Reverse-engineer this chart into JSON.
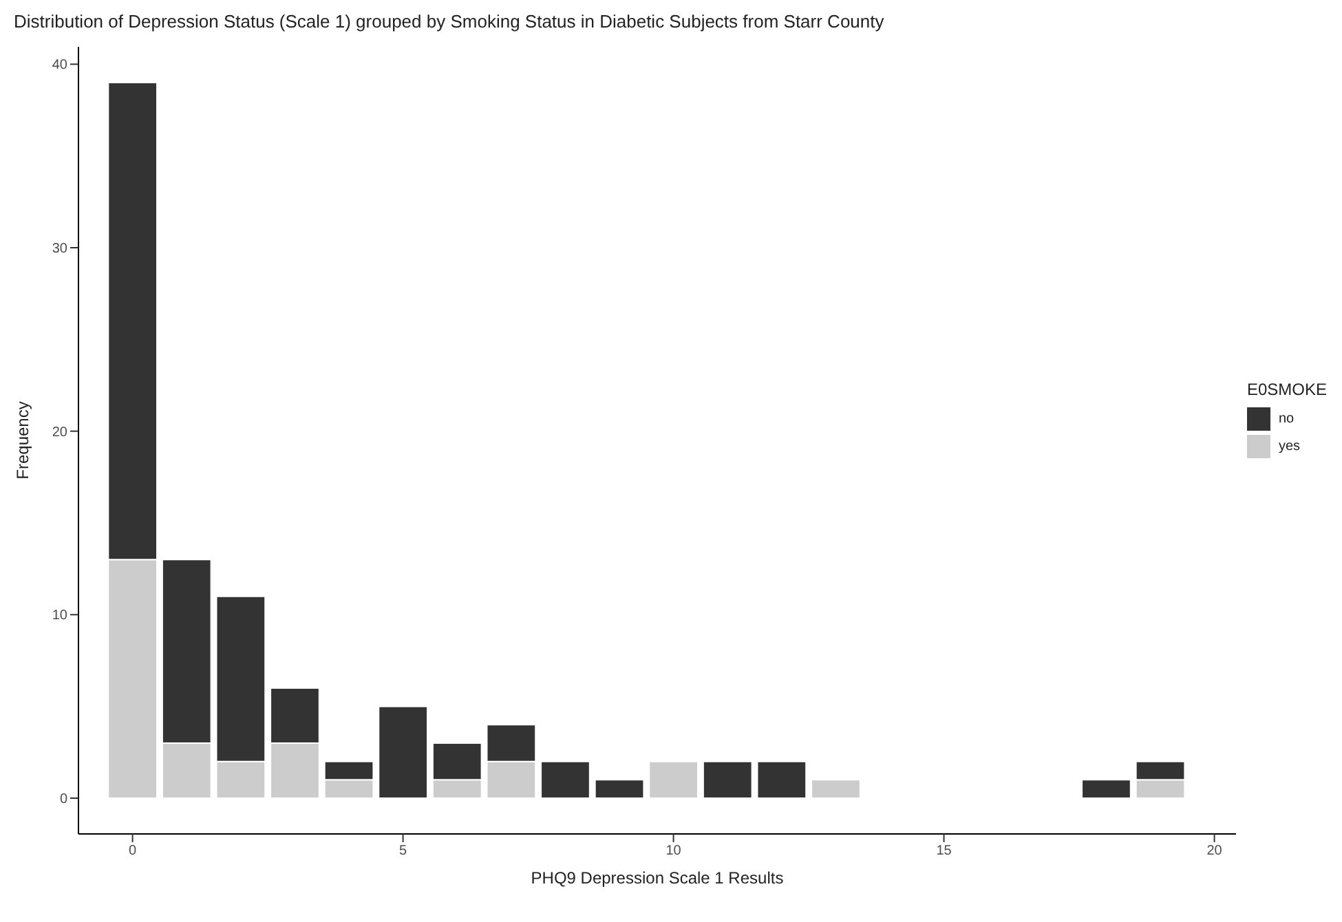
{
  "chart_data": {
    "type": "bar",
    "title": "Distribution of Depression Status (Scale 1) grouped by Smoking Status in Diabetic Subjects from Starr County",
    "xlabel": "PHQ9 Depression Scale 1 Results",
    "ylabel": "Frequency",
    "legend_title": "E0SMOKE",
    "x": [
      0,
      1,
      2,
      3,
      4,
      5,
      6,
      7,
      8,
      9,
      10,
      11,
      12,
      13,
      14,
      15,
      16,
      17,
      18,
      19
    ],
    "series": [
      {
        "name": "yes",
        "color": "#cccccc",
        "values": [
          13,
          3,
          2,
          3,
          1,
          0,
          1,
          2,
          0,
          0,
          2,
          0,
          0,
          1,
          0,
          0,
          0,
          0,
          0,
          1
        ]
      },
      {
        "name": "no",
        "color": "#333333",
        "values": [
          26,
          10,
          9,
          3,
          1,
          5,
          2,
          2,
          2,
          1,
          0,
          2,
          2,
          0,
          0,
          0,
          0,
          0,
          1,
          1
        ]
      }
    ],
    "stacked": true,
    "xlim": [
      -1,
      20.4
    ],
    "xticks": [
      0,
      5,
      10,
      15,
      20
    ],
    "ylim": [
      -1.95,
      40.95
    ],
    "yticks": [
      0,
      10,
      20,
      30,
      40
    ],
    "grid": false,
    "legend": "right"
  }
}
